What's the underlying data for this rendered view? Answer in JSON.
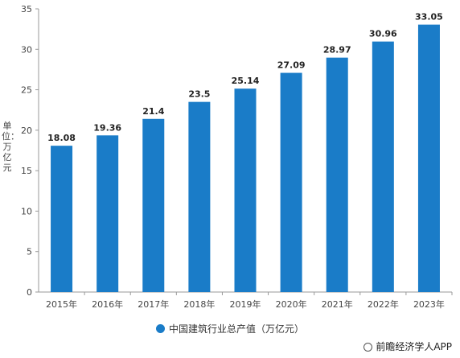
{
  "chart_data": {
    "type": "bar",
    "categories": [
      "2015年",
      "2016年",
      "2017年",
      "2018年",
      "2019年",
      "2020年",
      "2021年",
      "2022年",
      "2023年"
    ],
    "series": [
      {
        "name": "中国建筑行业总产值（万亿元）",
        "values": [
          18.08,
          19.36,
          21.4,
          23.5,
          25.14,
          27.09,
          28.97,
          30.96,
          33.05
        ],
        "labels": [
          "18.08",
          "19.36",
          "21.4",
          "23.5",
          "25.14",
          "27.09",
          "28.97",
          "30.96",
          "33.05"
        ],
        "color": "#1a7cc8"
      }
    ],
    "ylabel": "单位：万亿元",
    "ylim": [
      0,
      35
    ],
    "yticks": [
      0,
      5,
      10,
      15,
      20,
      25,
      30,
      35
    ],
    "grid": false,
    "legend": "bottom"
  },
  "source": "前瞻经济学人APP"
}
